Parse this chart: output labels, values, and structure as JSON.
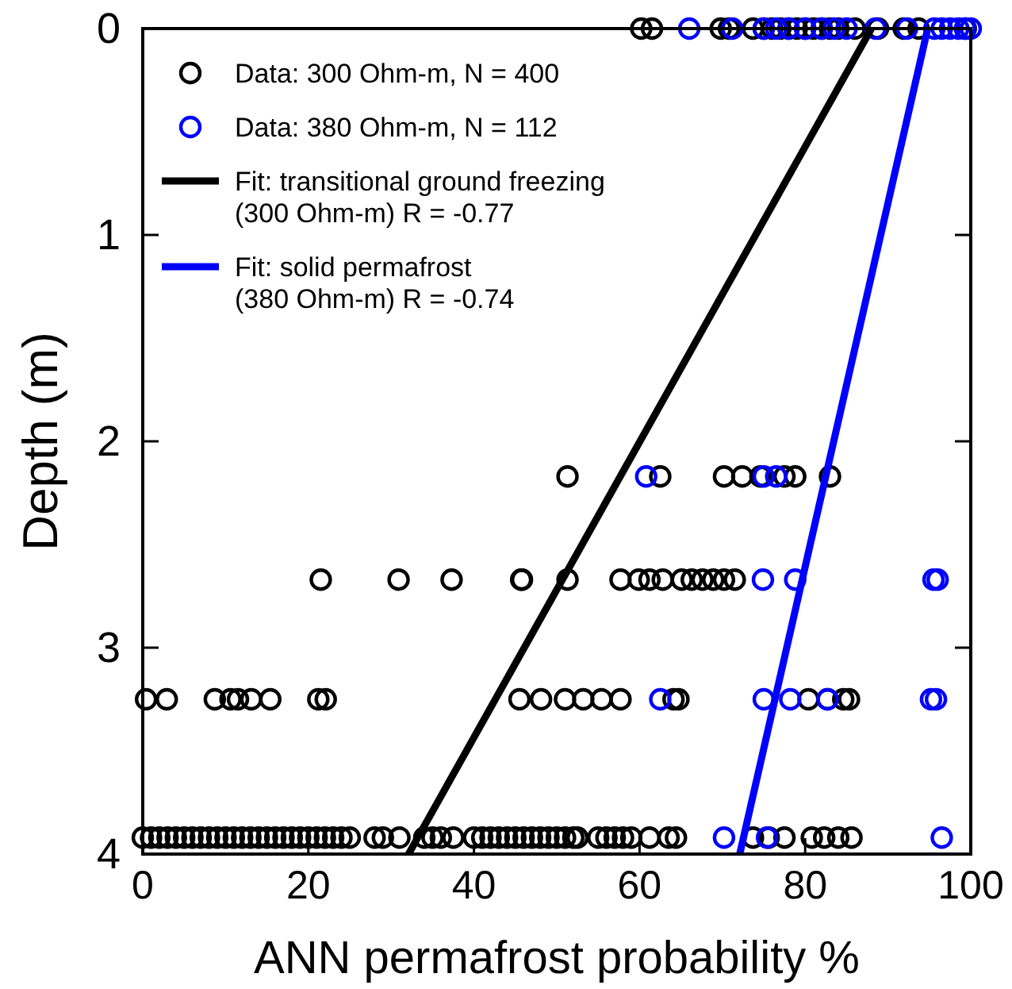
{
  "chart_data": {
    "type": "scatter",
    "xlabel": "ANN permafrost probability %",
    "ylabel": "Depth (m)",
    "xlim": [
      0,
      100
    ],
    "xticks": [
      0,
      20,
      40,
      60,
      80,
      100
    ],
    "ylim": [
      4,
      0
    ],
    "yticks": [
      0,
      1,
      2,
      3,
      4
    ],
    "grid": false,
    "legend": "top left",
    "marker": "circle",
    "series": [
      {
        "name": "Data: 300 Ohm-m, N = 400",
        "color": "#000000",
        "x": [
          60.2,
          61.5,
          69.8,
          70.8,
          73.7,
          75,
          76,
          77,
          78,
          79,
          80,
          81,
          82,
          83,
          84,
          86,
          88.8,
          91.9,
          93.7,
          99.4,
          51.3,
          62.5,
          70.2,
          72.4,
          74.6,
          77.5,
          78.8,
          83,
          21.5,
          30.9,
          37.3,
          45.7,
          45.8,
          51.3,
          57.7,
          59.9,
          61.2,
          62.8,
          65.1,
          66.3,
          67.6,
          68.9,
          70.2,
          71.5,
          0.4,
          2.9,
          8.7,
          10.6,
          11.5,
          13.1,
          15.4,
          21.2,
          22.1,
          45.5,
          48.1,
          51,
          53.2,
          55.4,
          57.7,
          64.1,
          64.7,
          80.4,
          82.7,
          84.6,
          85.3,
          0,
          1,
          2,
          3,
          4,
          5,
          6,
          7,
          8,
          9,
          10,
          11,
          12,
          13,
          14,
          15,
          16,
          17,
          18,
          19,
          20,
          21,
          22,
          23,
          24,
          25,
          28,
          29,
          31,
          34,
          35,
          36,
          37.5,
          40,
          41,
          42,
          43,
          44,
          45,
          46,
          47,
          48,
          49,
          50,
          51,
          52,
          52.5,
          55,
          56,
          57,
          58,
          59,
          61.2,
          63.5,
          64.4,
          73.7,
          75.6,
          77.5,
          80.8,
          82.3,
          84,
          85.6
        ],
        "values": [
          0,
          0,
          0,
          0,
          0,
          0,
          0,
          0,
          0,
          0,
          0,
          0,
          0,
          0,
          0,
          0,
          0,
          0,
          0,
          0,
          2.17,
          2.17,
          2.17,
          2.17,
          2.17,
          2.17,
          2.17,
          2.17,
          2.67,
          2.67,
          2.67,
          2.67,
          2.67,
          2.67,
          2.67,
          2.67,
          2.67,
          2.67,
          2.67,
          2.67,
          2.67,
          2.67,
          2.67,
          2.67,
          3.25,
          3.25,
          3.25,
          3.25,
          3.25,
          3.25,
          3.25,
          3.25,
          3.25,
          3.25,
          3.25,
          3.25,
          3.25,
          3.25,
          3.25,
          3.25,
          3.25,
          3.25,
          3.25,
          3.25,
          3.25,
          3.92,
          3.92,
          3.92,
          3.92,
          3.92,
          3.92,
          3.92,
          3.92,
          3.92,
          3.92,
          3.92,
          3.92,
          3.92,
          3.92,
          3.92,
          3.92,
          3.92,
          3.92,
          3.92,
          3.92,
          3.92,
          3.92,
          3.92,
          3.92,
          3.92,
          3.92,
          3.92,
          3.92,
          3.92,
          3.92,
          3.92,
          3.92,
          3.92,
          3.92,
          3.92,
          3.92,
          3.92,
          3.92,
          3.92,
          3.92,
          3.92,
          3.92,
          3.92,
          3.92,
          3.92,
          3.92,
          3.92,
          3.92,
          3.92,
          3.92,
          3.92,
          3.92,
          3.92,
          3.92,
          3.92,
          3.92,
          3.92,
          3.92,
          3.92,
          3.92,
          3.92,
          3.92
        ]
      },
      {
        "name": "Data: 380 Ohm-m, N = 112",
        "color": "#0000ff",
        "x": [
          66,
          71.2,
          75,
          76.5,
          78,
          80,
          82,
          83.5,
          85,
          88.5,
          92.3,
          95.6,
          96.5,
          97.5,
          98.5,
          99.3,
          100,
          60.8,
          75,
          76.5,
          74.9,
          78.8,
          95.5,
          96,
          62.5,
          75,
          78.2,
          82.7,
          95.2,
          95.8,
          70.2,
          75.4,
          96.5
        ],
        "values": [
          0,
          0,
          0,
          0,
          0,
          0,
          0,
          0,
          0,
          0,
          0,
          0,
          0,
          0,
          0,
          0,
          0,
          2.17,
          2.17,
          2.17,
          2.67,
          2.67,
          2.67,
          2.67,
          3.25,
          3.25,
          3.25,
          3.25,
          3.25,
          3.25,
          3.92,
          3.92,
          3.92
        ]
      },
      {
        "name": "Fit: transitional ground freezing\n(300 Ohm-m) R = -0.77",
        "color": "#000000",
        "type": "line",
        "marker": "none",
        "x": [
          88,
          32.1
        ],
        "values": [
          0,
          4
        ]
      },
      {
        "name": "Fit: solid permafrost\n(380 Ohm-m) R = -0.74",
        "color": "#0000ff",
        "type": "line",
        "marker": "none",
        "x": [
          94.8,
          72.1
        ],
        "values": [
          0,
          4
        ]
      }
    ]
  }
}
